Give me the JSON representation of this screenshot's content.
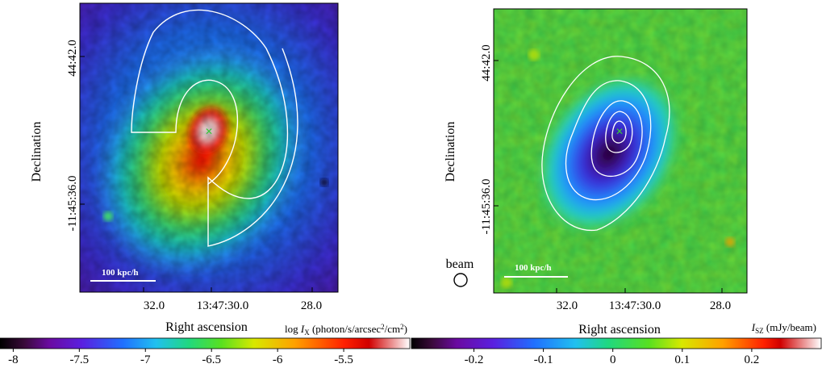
{
  "left_panel": {
    "ylabel": "Declination",
    "xlabel": "Right ascension",
    "yticks": [
      "44:42.0",
      "-11:45:36.0"
    ],
    "xticks": [
      "32.0",
      "13:47:30.0",
      "28.0"
    ],
    "scalebar": "100 kpc/h",
    "colorbar": {
      "label_prefix": "log ",
      "label_var": "I",
      "label_sub": "X",
      "label_units_pre": " (photon/s/arcsec",
      "label_sup": "2",
      "label_units_mid": "/cm",
      "label_sup2": "2",
      "label_units_post": ")",
      "ticks": [
        "-8",
        "-7.5",
        "-7",
        "-6.5",
        "-6",
        "-5.5"
      ],
      "tick_values": [
        -8,
        -7.5,
        -7,
        -6.5,
        -6,
        -5.5
      ],
      "range": [
        -8.1,
        -5.0
      ]
    }
  },
  "right_panel": {
    "ylabel": "Declination",
    "xlabel": "Right ascension",
    "yticks": [
      "44:42.0",
      "-11:45:36.0"
    ],
    "xticks": [
      "32.0",
      "13:47:30.0",
      "28.0"
    ],
    "scalebar": "100 kpc/h",
    "beam_label": "beam",
    "colorbar": {
      "label_var": "I",
      "label_sub": "SZ",
      "label_units": " (mJy/beam)",
      "ticks": [
        "-0.2",
        "-0.1",
        "0",
        "0.1",
        "0.2"
      ],
      "tick_values": [
        -0.2,
        -0.1,
        0,
        0.1,
        0.2
      ],
      "range": [
        -0.29,
        0.3
      ]
    }
  },
  "colors": {
    "marker": "#37c837",
    "contour": "#ffffff",
    "frame": "#000000"
  }
}
